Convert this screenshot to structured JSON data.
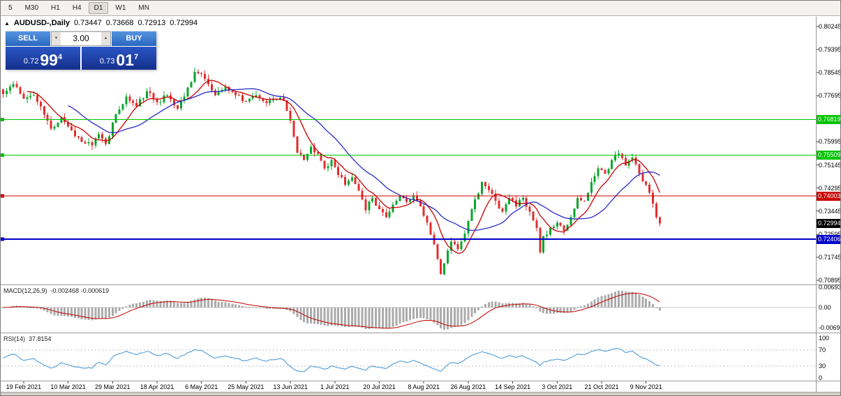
{
  "toolbar": {
    "timeframes": [
      "5",
      "M30",
      "H1",
      "H4",
      "D1",
      "W1",
      "MN"
    ],
    "active": "D1"
  },
  "icons": {
    "collapse_panel": "▲",
    "volume_down": "▼",
    "volume_up": "▲"
  },
  "chart_header": {
    "symbol": "AUDUSD-,Daily",
    "ohlc": {
      "open": "0.73447",
      "high": "0.73668",
      "low": "0.72913",
      "close": "0.72994"
    }
  },
  "trade_panel": {
    "sell_label": "SELL",
    "buy_label": "BUY",
    "volume": "3.00",
    "sell_price": {
      "prefix": "0.72",
      "big": "99",
      "sup": "4"
    },
    "buy_price": {
      "prefix": "0.73",
      "big": "01",
      "sup": "7"
    }
  },
  "price_axis": {
    "ticks": [
      "0.80245",
      "0.79395",
      "0.78545",
      "0.77695",
      "0.76845",
      "0.75995",
      "0.75145",
      "0.74295",
      "0.73445",
      "0.72595",
      "0.71745",
      "0.70895"
    ],
    "current_price": "0.72994"
  },
  "chart_data": {
    "type": "candlestick",
    "symbol": "AUDUSD",
    "timeframe": "Daily",
    "title": "AUDUSD-,Daily",
    "ohlc_readout": {
      "open": 0.73447,
      "high": 0.73668,
      "low": 0.72913,
      "close": 0.72994
    },
    "price_range": [
      0.70895,
      0.80245
    ],
    "bars_total": 193,
    "close_anchors": [
      [
        0,
        0.7775
      ],
      [
        3,
        0.7812
      ],
      [
        6,
        0.7758
      ],
      [
        9,
        0.7772
      ],
      [
        12,
        0.77
      ],
      [
        14,
        0.7648
      ],
      [
        17,
        0.769
      ],
      [
        20,
        0.7642
      ],
      [
        23,
        0.76
      ],
      [
        26,
        0.7586
      ],
      [
        28,
        0.7628
      ],
      [
        30,
        0.7592
      ],
      [
        33,
        0.7702
      ],
      [
        36,
        0.7766
      ],
      [
        39,
        0.773
      ],
      [
        42,
        0.7786
      ],
      [
        45,
        0.7746
      ],
      [
        48,
        0.7772
      ],
      [
        51,
        0.7722
      ],
      [
        54,
        0.78
      ],
      [
        56,
        0.7858
      ],
      [
        59,
        0.7832
      ],
      [
        62,
        0.7772
      ],
      [
        65,
        0.7802
      ],
      [
        68,
        0.7772
      ],
      [
        71,
        0.7748
      ],
      [
        74,
        0.7772
      ],
      [
        77,
        0.7742
      ],
      [
        80,
        0.7756
      ],
      [
        82,
        0.7752
      ],
      [
        84,
        0.7678
      ],
      [
        86,
        0.756
      ],
      [
        88,
        0.7532
      ],
      [
        90,
        0.7582
      ],
      [
        92,
        0.7556
      ],
      [
        94,
        0.7502
      ],
      [
        96,
        0.7532
      ],
      [
        98,
        0.7478
      ],
      [
        100,
        0.7442
      ],
      [
        102,
        0.7468
      ],
      [
        104,
        0.742
      ],
      [
        106,
        0.7348
      ],
      [
        108,
        0.7392
      ],
      [
        110,
        0.7352
      ],
      [
        112,
        0.7322
      ],
      [
        114,
        0.7368
      ],
      [
        116,
        0.7402
      ],
      [
        118,
        0.7378
      ],
      [
        120,
        0.7402
      ],
      [
        122,
        0.7362
      ],
      [
        124,
        0.7302
      ],
      [
        126,
        0.7222
      ],
      [
        128,
        0.7112
      ],
      [
        129,
        0.7152
      ],
      [
        131,
        0.7232
      ],
      [
        133,
        0.7204
      ],
      [
        135,
        0.7262
      ],
      [
        137,
        0.7352
      ],
      [
        140,
        0.7452
      ],
      [
        142,
        0.7422
      ],
      [
        144,
        0.7382
      ],
      [
        146,
        0.7342
      ],
      [
        148,
        0.7392
      ],
      [
        150,
        0.7362
      ],
      [
        152,
        0.7392
      ],
      [
        154,
        0.7342
      ],
      [
        156,
        0.7282
      ],
      [
        157,
        0.7192
      ],
      [
        158,
        0.7252
      ],
      [
        160,
        0.7282
      ],
      [
        162,
        0.7302
      ],
      [
        164,
        0.7272
      ],
      [
        166,
        0.7322
      ],
      [
        168,
        0.7392
      ],
      [
        170,
        0.7382
      ],
      [
        172,
        0.7452
      ],
      [
        174,
        0.7502
      ],
      [
        176,
        0.7482
      ],
      [
        178,
        0.7532
      ],
      [
        180,
        0.7556
      ],
      [
        182,
        0.7512
      ],
      [
        184,
        0.7542
      ],
      [
        186,
        0.7482
      ],
      [
        188,
        0.7442
      ],
      [
        190,
        0.7372
      ],
      [
        191,
        0.7322
      ],
      [
        192,
        0.72994
      ]
    ],
    "x_axis": {
      "labels": [
        {
          "text": "19 Feb 2021",
          "bar": 6
        },
        {
          "text": "10 Mar 2021",
          "bar": 19
        },
        {
          "text": "29 Mar 2021",
          "bar": 32
        },
        {
          "text": "18 Apr 2021",
          "bar": 45
        },
        {
          "text": "6 May 2021",
          "bar": 58
        },
        {
          "text": "25 May 2021",
          "bar": 71
        },
        {
          "text": "13 Jun 2021",
          "bar": 84
        },
        {
          "text": "1 Jul 2021",
          "bar": 97
        },
        {
          "text": "20 Jul 2021",
          "bar": 110
        },
        {
          "text": "8 Aug 2021",
          "bar": 123
        },
        {
          "text": "26 Aug 2021",
          "bar": 136
        },
        {
          "text": "14 Sep 2021",
          "bar": 149
        },
        {
          "text": "3 Oct 2021",
          "bar": 162
        },
        {
          "text": "21 Oct 2021",
          "bar": 175
        },
        {
          "text": "9 Nov 2021",
          "bar": 188
        }
      ]
    },
    "hlines": [
      {
        "price": 0.76819,
        "label": "0.76819",
        "color": "#00c400",
        "width": 1
      },
      {
        "price": 0.75509,
        "label": "0.75509",
        "color": "#00c400",
        "width": 1
      },
      {
        "price": 0.74003,
        "label": "0.74003",
        "color": "#cc0000",
        "width": 1
      },
      {
        "price": 0.72406,
        "label": "0.72406",
        "color": "#0000cc",
        "width": 2
      }
    ],
    "current_price_marker": {
      "price": 0.72994,
      "label": "0.72994",
      "bg": "#000000",
      "fg": "#ffffff"
    },
    "moving_averages": [
      {
        "type": "sma",
        "period": 8,
        "color": "#c90000"
      },
      {
        "type": "sma",
        "period": 20,
        "color": "#2929c9"
      }
    ],
    "indicators": [
      {
        "name": "MACD",
        "label": "MACD(12,26,9)",
        "values_text": "-0.002468 -0.000619",
        "fast": 12,
        "slow": 26,
        "signal": 9,
        "axis_ticks": [
          "0.006936",
          "0.00",
          "-0.006936"
        ],
        "histogram_color": "#ababab",
        "signal_color": "#c00000"
      },
      {
        "name": "RSI",
        "label": "RSI(14)",
        "value_text": "37.8154",
        "period": 14,
        "levels": [
          70,
          30
        ],
        "axis_ticks": [
          "100",
          "70",
          "30",
          "0"
        ],
        "line_color": "#4f9bd8"
      }
    ],
    "style": {
      "bull_color": "#0aa52c",
      "bear_color": "#e22e2e",
      "background": "#ffffff"
    }
  }
}
